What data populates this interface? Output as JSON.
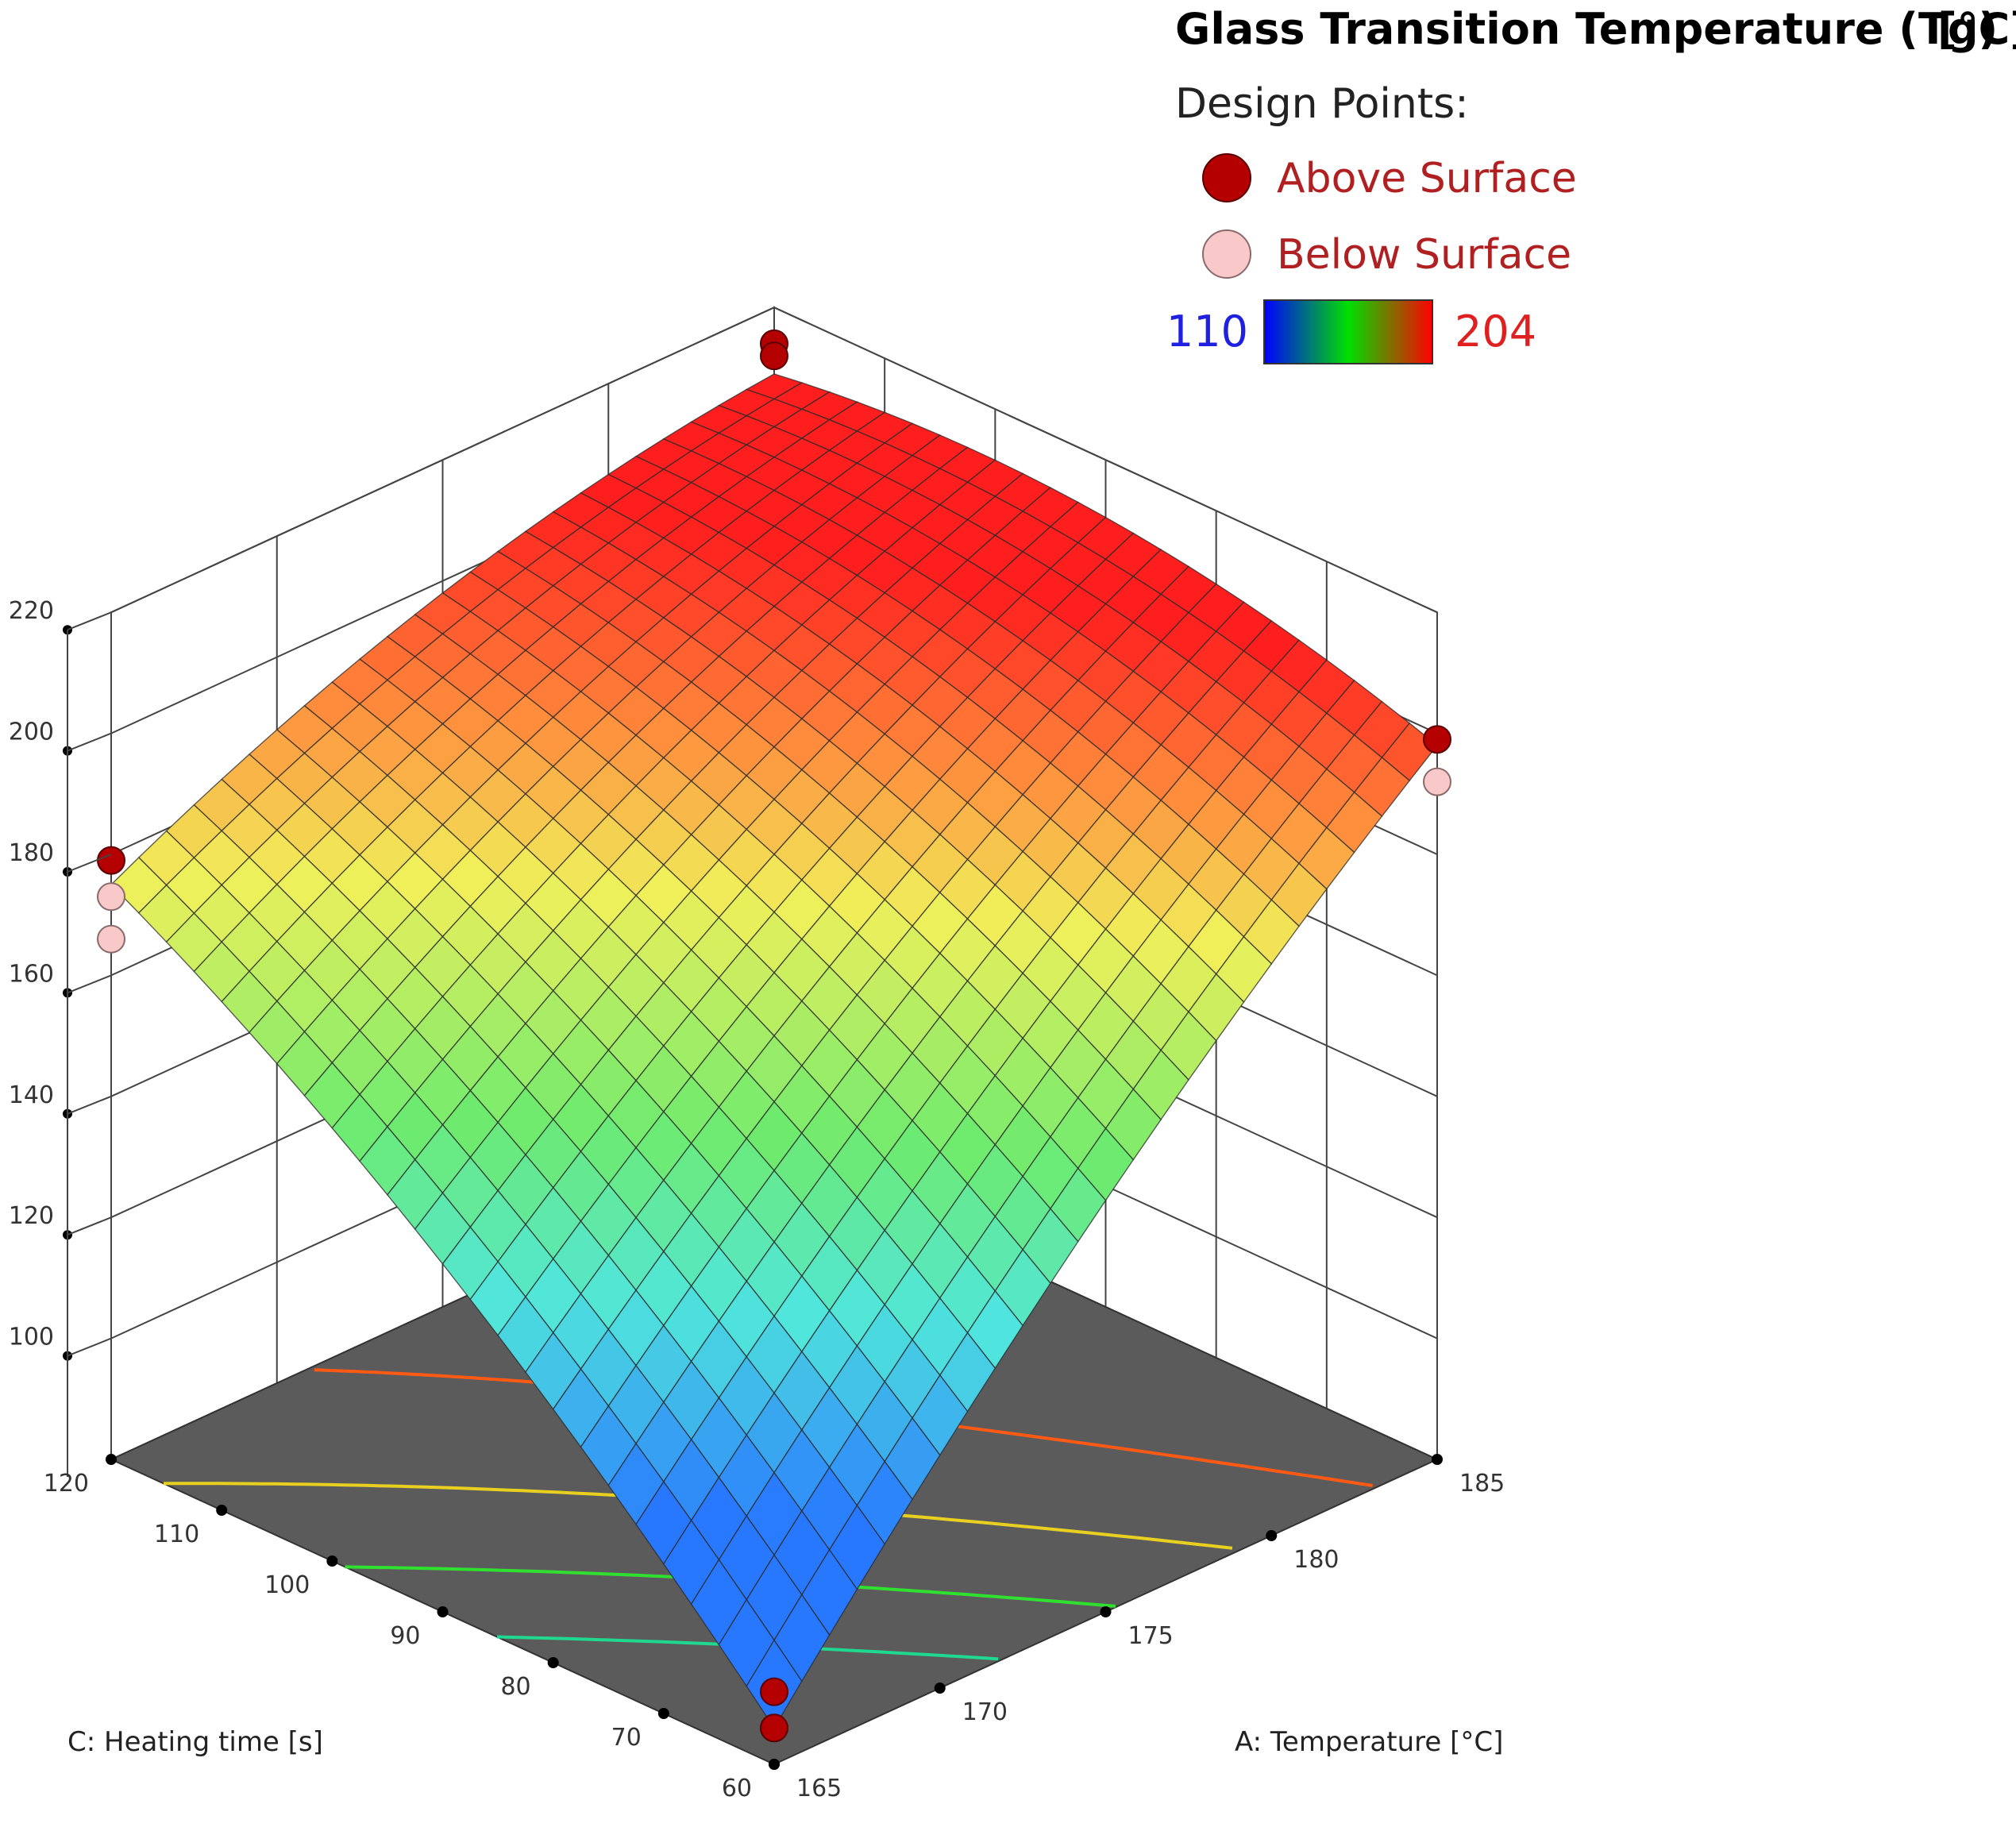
{
  "chart_data": {
    "type": "surface",
    "title": "Glass Transition Temperature (Tg)",
    "title_unit": "[°C]",
    "legend": {
      "heading": "Design Points:",
      "entries": [
        {
          "name": "Above Surface",
          "color": "#b40000"
        },
        {
          "name": "Below Surface",
          "color": "#f9c8c8"
        }
      ]
    },
    "colorbar": {
      "min": 110,
      "max": 204,
      "min_label": "110",
      "max_label": "204",
      "colors": [
        "#0000ff",
        "#00e000",
        "#ff0000"
      ]
    },
    "x_axis": {
      "label": "A: Temperature [°C]",
      "range": [
        165,
        185
      ],
      "ticks": [
        "165",
        "170",
        "175",
        "180",
        "185"
      ]
    },
    "y_axis": {
      "label": "C: Heating time [s]",
      "range": [
        60,
        120
      ],
      "ticks": [
        "60",
        "70",
        "80",
        "90",
        "100",
        "110",
        "120"
      ]
    },
    "z_axis": {
      "label": "",
      "range": [
        80,
        220
      ],
      "ticks": [
        "100",
        "120",
        "140",
        "160",
        "180",
        "200",
        "220"
      ]
    },
    "surface_corners": [
      {
        "A": 165,
        "C": 60,
        "Tg": 86
      },
      {
        "A": 185,
        "C": 60,
        "Tg": 198
      },
      {
        "A": 165,
        "C": 120,
        "Tg": 175
      },
      {
        "A": 185,
        "C": 120,
        "Tg": 209
      }
    ],
    "contour_levels": [
      130,
      150,
      170,
      190
    ],
    "design_points": [
      {
        "A": 165,
        "C": 60,
        "Tg": 92,
        "position": "Above Surface"
      },
      {
        "A": 165,
        "C": 60,
        "Tg": 86,
        "position": "Above Surface"
      },
      {
        "A": 185,
        "C": 120,
        "Tg": 214,
        "position": "Above Surface"
      },
      {
        "A": 185,
        "C": 120,
        "Tg": 212,
        "position": "Above Surface"
      },
      {
        "A": 165,
        "C": 120,
        "Tg": 179,
        "position": "Above Surface"
      },
      {
        "A": 165,
        "C": 120,
        "Tg": 173,
        "position": "Below Surface"
      },
      {
        "A": 165,
        "C": 120,
        "Tg": 166,
        "position": "Below Surface"
      },
      {
        "A": 185,
        "C": 60,
        "Tg": 199,
        "position": "Above Surface"
      },
      {
        "A": 185,
        "C": 60,
        "Tg": 192,
        "position": "Below Surface"
      }
    ],
    "grid": true,
    "legend_position": "top-right"
  }
}
